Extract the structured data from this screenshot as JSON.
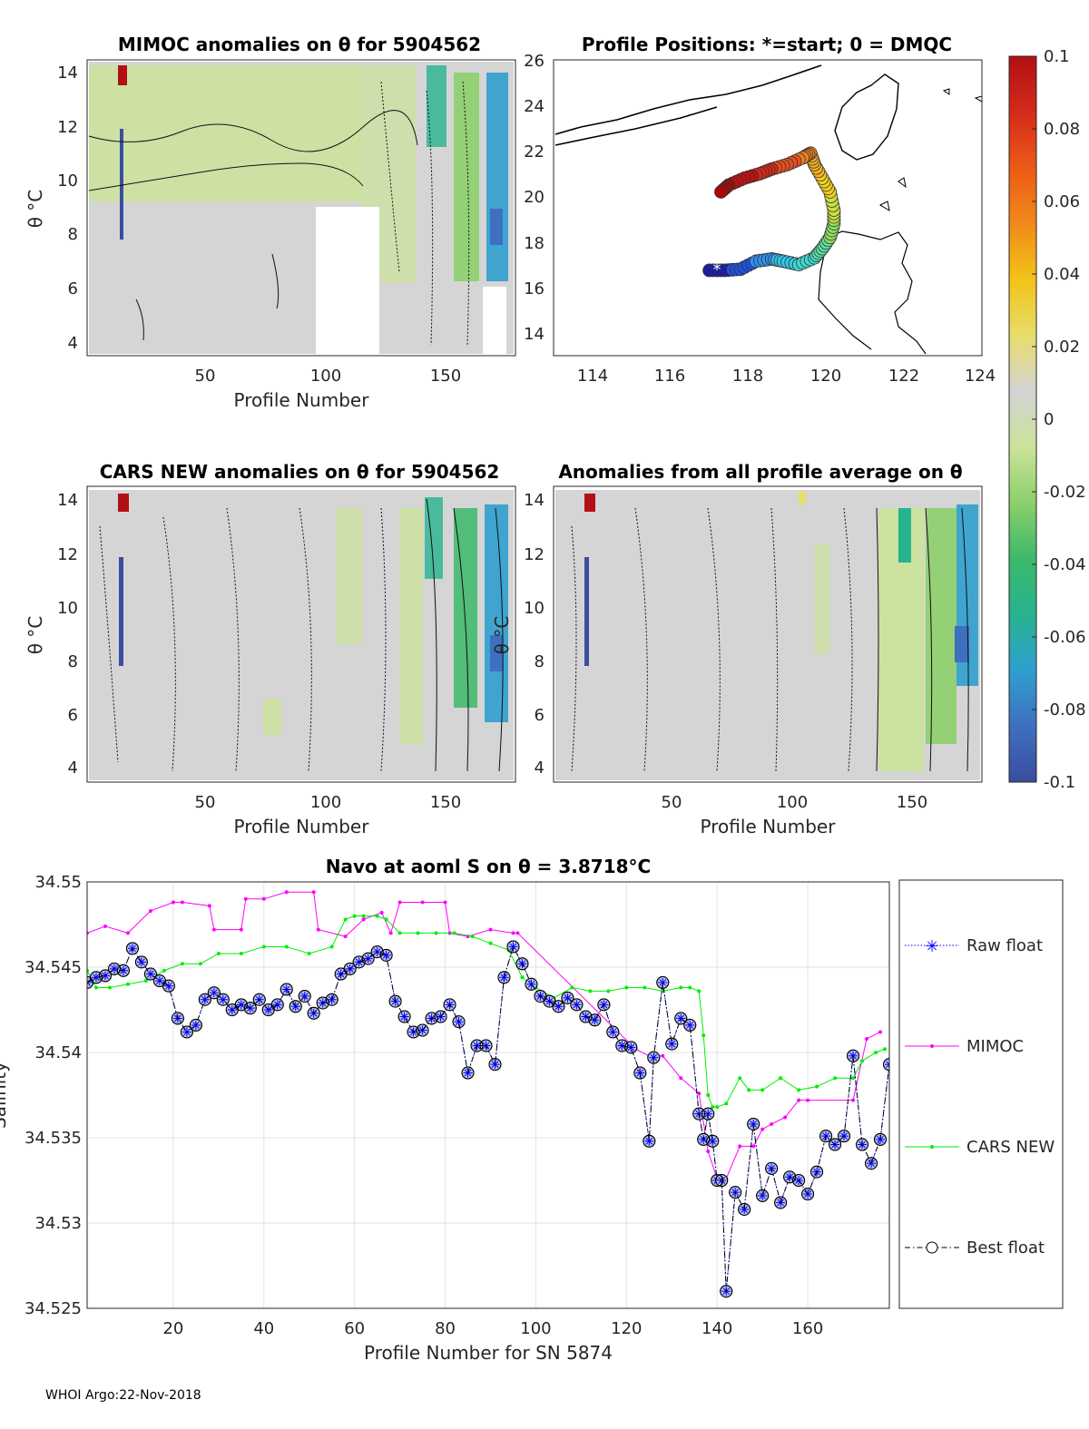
{
  "footer": "WHOI Argo:22-Nov-2018",
  "colorbar": {
    "ticks": [
      "0.1",
      "0.08",
      "0.06",
      "0.04",
      "0.02",
      "0",
      "-0.02",
      "-0.04",
      "-0.06",
      "-0.08",
      "-0.1"
    ],
    "range": [
      -0.1,
      0.1
    ],
    "colors": [
      "#3a4da0",
      "#3f6fbf",
      "#2f9fcf",
      "#27b38f",
      "#3cb96a",
      "#8ccf6b",
      "#cbe39a",
      "#d3d3d3",
      "#e8dd6a",
      "#f2c319",
      "#f08a19",
      "#ed5a17",
      "#d42a1b",
      "#b11015"
    ]
  },
  "chart_data": [
    {
      "id": "mimoc",
      "type": "heatmap",
      "title": "MIMOC anomalies on θ  for 5904562",
      "xlabel": "Profile Number",
      "ylabel": "θ °C",
      "xticks": [
        "50",
        "100",
        "150"
      ],
      "yticks": [
        "4",
        "6",
        "8",
        "10",
        "12",
        "14"
      ],
      "xlim": [
        1,
        178
      ],
      "ylim": [
        3.6,
        14.4
      ]
    },
    {
      "id": "positions",
      "type": "scatter",
      "title": "Profile Positions: *=start; 0 = DMQC",
      "xticks": [
        "114",
        "116",
        "118",
        "120",
        "122",
        "124"
      ],
      "yticks": [
        "14",
        "16",
        "18",
        "20",
        "22",
        "24",
        "26"
      ],
      "xlim": [
        113,
        124
      ],
      "ylim": [
        13,
        26
      ],
      "track_lon": [
        117.0,
        117.4,
        117.8,
        118.2,
        118.6,
        118.9,
        119.3,
        119.7,
        119.9,
        120.1,
        120.2,
        120.2,
        120.1,
        119.9,
        119.7,
        119.6,
        119.4,
        119.0,
        118.6,
        118.3,
        117.9,
        117.5,
        117.3
      ],
      "track_lat": [
        16.75,
        16.75,
        16.8,
        17.15,
        17.25,
        17.15,
        17.0,
        17.3,
        17.7,
        18.2,
        18.8,
        19.4,
        20.2,
        20.8,
        21.4,
        21.9,
        21.7,
        21.4,
        21.2,
        21.0,
        20.8,
        20.5,
        20.2
      ]
    },
    {
      "id": "cars",
      "type": "heatmap",
      "title": "CARS NEW anomalies on θ for 5904562",
      "xlabel": "Profile Number",
      "ylabel": "θ °C",
      "xticks": [
        "50",
        "100",
        "150"
      ],
      "yticks": [
        "4",
        "6",
        "8",
        "10",
        "12",
        "14"
      ],
      "xlim": [
        1,
        178
      ],
      "ylim": [
        3.6,
        14.4
      ]
    },
    {
      "id": "allavg",
      "type": "heatmap",
      "title": "Anomalies from all profile average on θ",
      "xlabel": "Profile Number",
      "ylabel": "θ °C",
      "xticks": [
        "50",
        "100",
        "150"
      ],
      "yticks": [
        "4",
        "6",
        "8",
        "10",
        "12",
        "14"
      ],
      "xlim": [
        1,
        178
      ],
      "ylim": [
        3.6,
        14.4
      ]
    },
    {
      "id": "salinity",
      "type": "line",
      "title": "Navo at aoml S on θ = 3.8718°C",
      "xlabel": "Profile Number for SN 5874",
      "ylabel": "Salinity",
      "xticks": [
        "20",
        "40",
        "60",
        "80",
        "100",
        "120",
        "140",
        "160"
      ],
      "yticks": [
        "34.525",
        "34.53",
        "34.535",
        "34.54",
        "34.545",
        "34.55"
      ],
      "xlim": [
        1,
        178
      ],
      "ylim": [
        34.525,
        34.55
      ],
      "legend": [
        "Raw float",
        "MIMOC",
        "CARS NEW",
        "Best float"
      ],
      "series": [
        {
          "name": "MIMOC",
          "color": "#ff00ff",
          "x": [
            1,
            5,
            10,
            15,
            20,
            22,
            28,
            29,
            35,
            36,
            40,
            45,
            51,
            52,
            58,
            62,
            66,
            68,
            70,
            75,
            80,
            81,
            85,
            90,
            95,
            96,
            122,
            125,
            128,
            132,
            136,
            138,
            140,
            142,
            145,
            148,
            150,
            152,
            155,
            158,
            160,
            170,
            173,
            176
          ],
          "y": [
            34.547,
            34.5474,
            34.547,
            34.5483,
            34.5488,
            34.5488,
            34.5486,
            34.5472,
            34.5472,
            34.549,
            34.549,
            34.5494,
            34.5494,
            34.5472,
            34.5468,
            34.5478,
            34.5482,
            34.547,
            34.5488,
            34.5488,
            34.5488,
            34.547,
            34.5468,
            34.5472,
            34.547,
            34.547,
            34.5402,
            34.5398,
            34.5398,
            34.5385,
            34.5376,
            34.5342,
            34.5326,
            34.5326,
            34.5345,
            34.5345,
            34.5355,
            34.5358,
            34.5362,
            34.5372,
            34.5372,
            34.5372,
            34.5408,
            34.5412
          ]
        },
        {
          "name": "CARS NEW",
          "color": "#00ee00",
          "x": [
            1,
            3,
            6,
            10,
            14,
            18,
            22,
            26,
            30,
            35,
            40,
            45,
            50,
            55,
            58,
            60,
            62,
            65,
            67,
            70,
            74,
            78,
            82,
            86,
            90,
            94,
            97,
            100,
            104,
            108,
            112,
            116,
            120,
            124,
            128,
            132,
            134,
            136,
            137,
            138,
            139,
            140,
            142,
            145,
            147,
            150,
            154,
            158,
            162,
            166,
            170,
            172,
            175,
            177
          ],
          "y": [
            34.5448,
            34.5438,
            34.5438,
            34.544,
            34.5442,
            34.5448,
            34.5452,
            34.5452,
            34.5458,
            34.5458,
            34.5462,
            34.5462,
            34.5458,
            34.5462,
            34.5478,
            34.548,
            34.548,
            34.548,
            34.5478,
            34.547,
            34.547,
            34.547,
            34.547,
            34.5468,
            34.5464,
            34.546,
            34.5444,
            34.5438,
            34.5432,
            34.5438,
            34.5436,
            34.5436,
            34.5438,
            34.5438,
            34.5436,
            34.5438,
            34.5438,
            34.5436,
            34.541,
            34.5375,
            34.5368,
            34.5368,
            34.537,
            34.5385,
            34.5378,
            34.5378,
            34.5385,
            34.5378,
            34.538,
            34.5385,
            34.5385,
            34.5395,
            34.54,
            34.5402
          ]
        },
        {
          "name": "Raw float",
          "color": "#0000ff",
          "x": [
            1,
            3,
            5,
            7,
            9,
            11,
            13,
            15,
            17,
            19,
            21,
            23,
            25,
            27,
            29,
            31,
            33,
            35,
            37,
            39,
            41,
            43,
            45,
            47,
            49,
            51,
            53,
            55,
            57,
            59,
            61,
            63,
            65,
            67,
            69,
            71,
            73,
            75,
            77,
            79,
            81,
            83,
            85,
            87,
            89,
            91,
            93,
            95,
            97,
            99,
            101,
            103,
            105,
            107,
            109,
            111,
            113,
            115,
            117,
            119,
            121,
            123,
            125,
            126,
            128,
            130,
            132,
            134,
            136,
            137,
            138,
            139,
            140,
            141,
            142,
            144,
            146,
            148,
            150,
            152,
            154,
            156,
            158,
            160,
            162,
            164,
            166,
            168,
            170,
            172,
            174,
            176,
            178
          ],
          "y": [
            34.5441,
            34.5444,
            34.5445,
            34.5449,
            34.5448,
            34.5461,
            34.5453,
            34.5446,
            34.5442,
            34.5439,
            34.542,
            34.5412,
            34.5416,
            34.5431,
            34.5435,
            34.5431,
            34.5425,
            34.5428,
            34.5426,
            34.5431,
            34.5425,
            34.5428,
            34.5437,
            34.5427,
            34.5433,
            34.5423,
            34.5429,
            34.5431,
            34.5446,
            34.5449,
            34.5453,
            34.5455,
            34.5459,
            34.5457,
            34.543,
            34.5421,
            34.5412,
            34.5413,
            34.542,
            34.5421,
            34.5428,
            34.5418,
            34.5388,
            34.5404,
            34.5404,
            34.5393,
            34.5444,
            34.5462,
            34.5452,
            34.544,
            34.5433,
            34.543,
            34.5427,
            34.5432,
            34.5428,
            34.5421,
            34.5419,
            34.5428,
            34.5412,
            34.5404,
            34.5403,
            34.5388,
            34.5348,
            34.5397,
            34.5441,
            34.5405,
            34.542,
            34.5416,
            34.5364,
            34.5349,
            34.5364,
            34.5348,
            34.5325,
            34.5325,
            34.526,
            34.5318,
            34.5308,
            34.5358,
            34.5316,
            34.5332,
            34.5312,
            34.5327,
            34.5325,
            34.5317,
            34.533,
            34.5351,
            34.5346,
            34.5351,
            34.5398,
            34.5346,
            34.5335,
            34.5349,
            34.5393
          ]
        },
        {
          "name": "Best float",
          "color": "#000000",
          "x": [
            1,
            3,
            5,
            7,
            9,
            11,
            13,
            15,
            17,
            19,
            21,
            23,
            25,
            27,
            29,
            31,
            33,
            35,
            37,
            39,
            41,
            43,
            45,
            47,
            49,
            51,
            53,
            55,
            57,
            59,
            61,
            63,
            65,
            67,
            69,
            71,
            73,
            75,
            77,
            79,
            81,
            83,
            85,
            87,
            89,
            91,
            93,
            95,
            97,
            99,
            101,
            103,
            105,
            107,
            109,
            111,
            113,
            115,
            117,
            119,
            121,
            123,
            125,
            126,
            128,
            130,
            132,
            134,
            136,
            137,
            138,
            139,
            140,
            141,
            142,
            144,
            146,
            148,
            150,
            152,
            154,
            156,
            158,
            160,
            162,
            164,
            166,
            168,
            170,
            172,
            174,
            176,
            178
          ],
          "y": [
            34.5441,
            34.5444,
            34.5445,
            34.5449,
            34.5448,
            34.5461,
            34.5453,
            34.5446,
            34.5442,
            34.5439,
            34.542,
            34.5412,
            34.5416,
            34.5431,
            34.5435,
            34.5431,
            34.5425,
            34.5428,
            34.5426,
            34.5431,
            34.5425,
            34.5428,
            34.5437,
            34.5427,
            34.5433,
            34.5423,
            34.5429,
            34.5431,
            34.5446,
            34.5449,
            34.5453,
            34.5455,
            34.5459,
            34.5457,
            34.543,
            34.5421,
            34.5412,
            34.5413,
            34.542,
            34.5421,
            34.5428,
            34.5418,
            34.5388,
            34.5404,
            34.5404,
            34.5393,
            34.5444,
            34.5462,
            34.5452,
            34.544,
            34.5433,
            34.543,
            34.5427,
            34.5432,
            34.5428,
            34.5421,
            34.5419,
            34.5428,
            34.5412,
            34.5404,
            34.5403,
            34.5388,
            34.5348,
            34.5397,
            34.5441,
            34.5405,
            34.542,
            34.5416,
            34.5364,
            34.5349,
            34.5364,
            34.5348,
            34.5325,
            34.5325,
            34.526,
            34.5318,
            34.5308,
            34.5358,
            34.5316,
            34.5332,
            34.5312,
            34.5327,
            34.5325,
            34.5317,
            34.533,
            34.5351,
            34.5346,
            34.5351,
            34.5398,
            34.5346,
            34.5335,
            34.5349,
            34.5393
          ]
        }
      ]
    }
  ]
}
